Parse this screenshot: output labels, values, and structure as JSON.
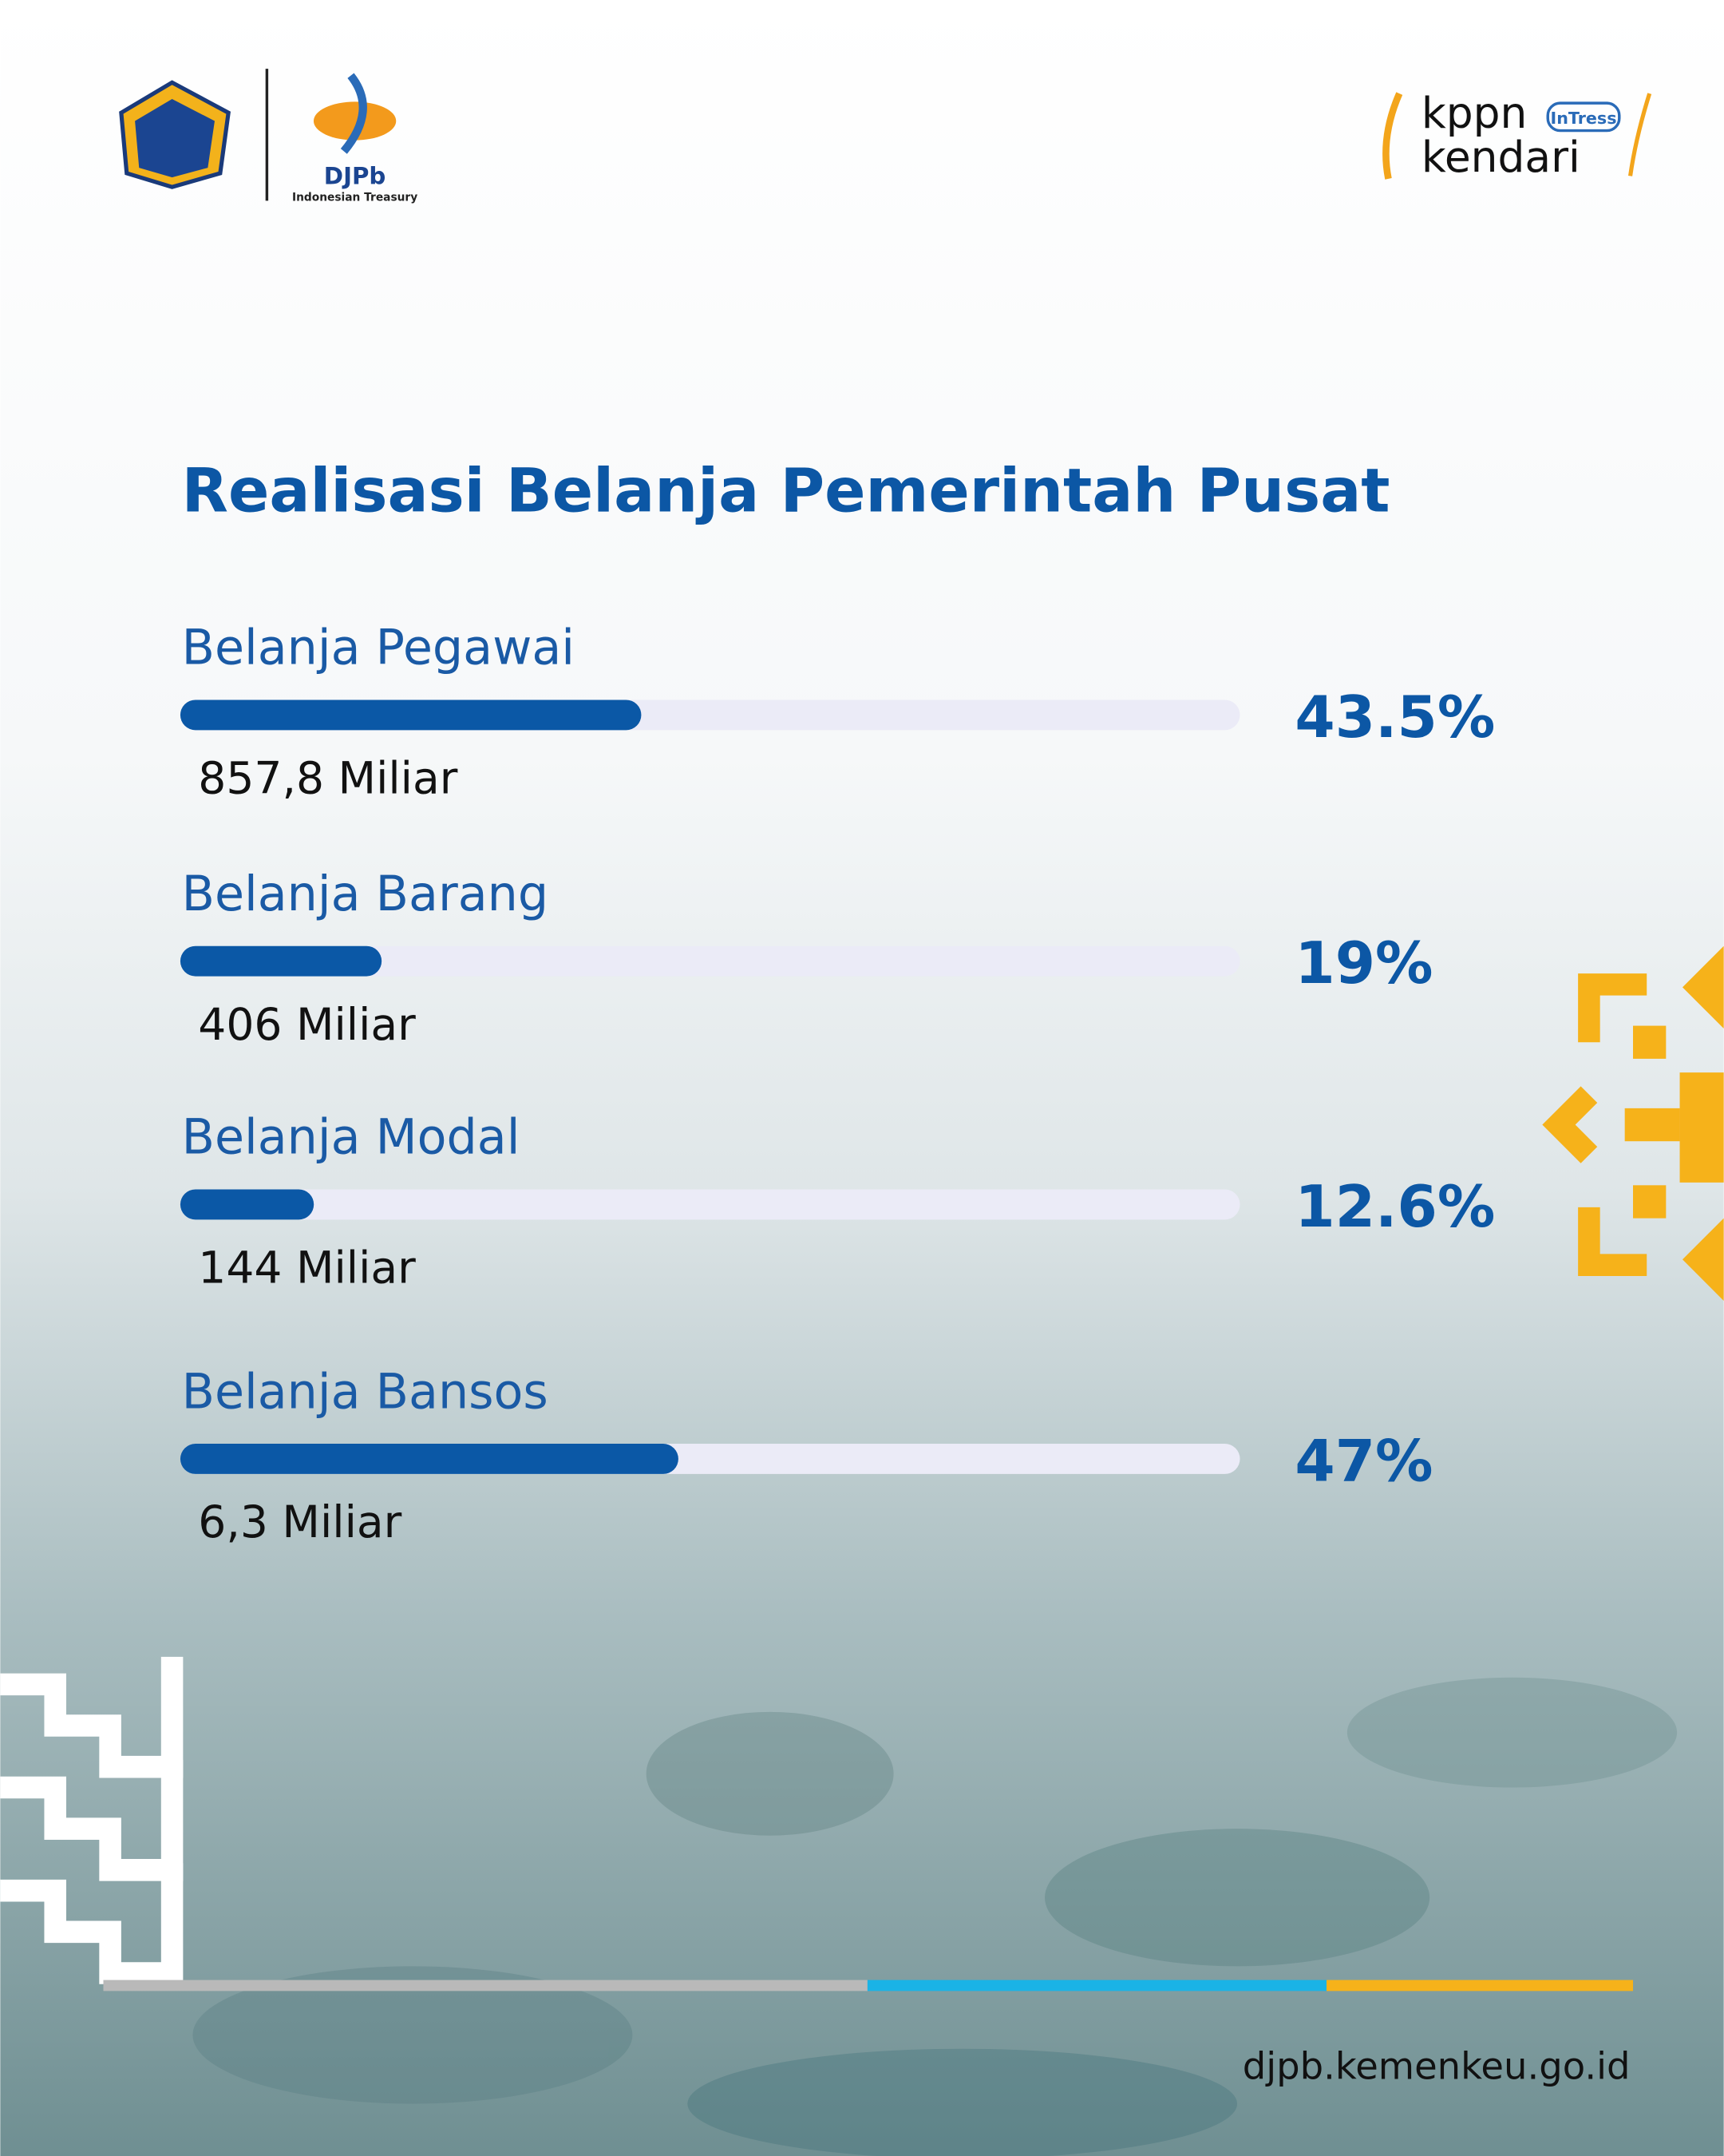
{
  "header": {
    "logo_text": "DJPb",
    "logo_subtext": "Indonesian Treasury",
    "brand_line1": "kppn",
    "brand_badge": "InTress",
    "brand_line2": "kendari"
  },
  "chart_data": {
    "type": "progress-bar",
    "title": "Realisasi Belanja Pemerintah Pusat",
    "categories": [
      "Belanja Pegawai",
      "Belanja Barang",
      "Belanja Modal",
      "Belanja Bansos"
    ],
    "values": [
      43.5,
      19,
      12.6,
      47
    ],
    "value_labels": [
      "43.5%",
      "19%",
      "12.6%",
      "47%"
    ],
    "amount_labels": [
      "857,8 Miliar",
      "406 Miliar",
      "144 Miliar",
      "6,3 Miliar"
    ],
    "xlim": [
      0,
      100
    ],
    "color": "#0b58a6",
    "track_color": "#ebebf7"
  },
  "footer": {
    "url": "djpb.kemenkeu.go.id"
  }
}
